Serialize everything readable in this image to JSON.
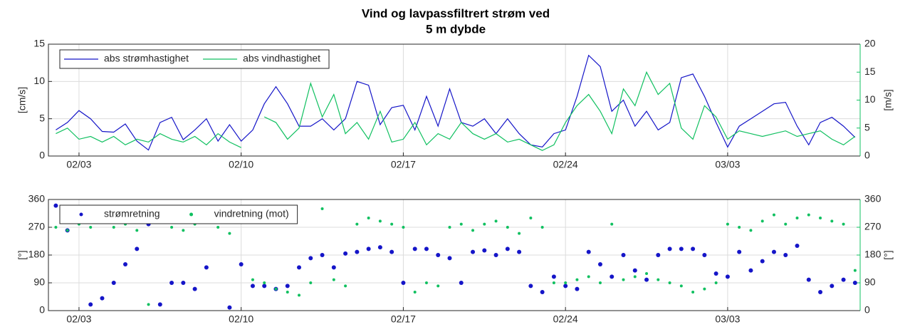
{
  "chart_data": [
    {
      "type": "line",
      "title": [
        "Vind og lavpassfiltrert strøm ved",
        "5 m dybde"
      ],
      "ylabel": "[cm/s]",
      "y2label": "[m/s]",
      "xlim": [
        32.68,
        67.72
      ],
      "xticks": [
        {
          "value": 34,
          "label": "02/03"
        },
        {
          "value": 41,
          "label": "02/10"
        },
        {
          "value": 48,
          "label": "02/17"
        },
        {
          "value": 55,
          "label": "02/24"
        },
        {
          "value": 62,
          "label": "03/03"
        }
      ],
      "ylim": [
        0,
        15
      ],
      "yticks": [
        0,
        5,
        10,
        15
      ],
      "y2lim": [
        0,
        20
      ],
      "y2ticks": [
        0,
        5,
        10,
        15,
        20
      ],
      "grid": true,
      "legend": "upper left",
      "x": [
        33,
        33.5,
        34,
        34.5,
        35,
        35.5,
        36,
        36.5,
        37,
        37.5,
        38,
        38.5,
        39,
        39.5,
        40,
        40.5,
        41,
        41.5,
        42,
        42.5,
        43,
        43.5,
        44,
        44.5,
        45,
        45.5,
        46,
        46.5,
        47,
        47.5,
        48,
        48.5,
        49,
        49.5,
        50,
        50.5,
        51,
        51.5,
        52,
        52.5,
        53,
        53.5,
        54,
        54.5,
        55,
        55.5,
        56,
        56.5,
        57,
        57.5,
        58,
        58.5,
        59,
        59.5,
        60,
        60.5,
        61,
        61.5,
        62,
        62.5,
        63,
        63.5,
        64,
        64.5,
        65,
        65.5,
        66,
        66.5,
        67,
        67.5
      ],
      "series": [
        {
          "name": "abs strømhastighet",
          "color": "#1515c8",
          "values": [
            3.5,
            4.5,
            6.1,
            5.0,
            3.3,
            3.2,
            4.3,
            2.0,
            0.8,
            4.5,
            5.2,
            2.2,
            3.5,
            5.0,
            2.0,
            4.2,
            2.0,
            3.5,
            7.0,
            9.3,
            7.0,
            4.0,
            4.0,
            5.0,
            3.5,
            5.0,
            10.0,
            9.5,
            4.2,
            6.5,
            6.8,
            3.5,
            8.0,
            4.0,
            9.0,
            4.5,
            4.0,
            5.0,
            3.0,
            5.0,
            3.0,
            1.5,
            1.2,
            3.0,
            3.5,
            8.0,
            13.5,
            12.0,
            6.0,
            7.5,
            4.0,
            6.0,
            3.5,
            4.5,
            10.5,
            11.0,
            8.0,
            4.5,
            1.2,
            4.0,
            5.0,
            6.0,
            7.0,
            7.2,
            4.0,
            1.5,
            4.5,
            5.2,
            4.0,
            2.5
          ]
        },
        {
          "name": "abs vindhastighet",
          "color": "#10c060",
          "axis": "y2",
          "values": [
            4,
            5,
            3,
            3.5,
            2.5,
            3.5,
            2,
            3,
            2.5,
            4,
            3,
            2.5,
            3.5,
            2,
            4,
            2.5,
            1.5,
            null,
            7,
            6,
            3,
            5,
            13,
            7,
            11,
            4,
            6,
            3,
            8,
            2.5,
            3,
            6,
            2,
            4,
            3,
            6,
            4,
            3,
            4,
            2.5,
            3,
            2,
            1,
            2,
            6,
            9,
            11,
            8,
            4,
            12,
            9,
            15,
            11,
            13,
            5,
            3,
            9,
            7,
            3,
            4.5,
            4,
            3.5,
            4,
            4.5,
            3.5,
            4,
            4.5,
            3,
            2,
            3.5
          ]
        }
      ]
    },
    {
      "type": "scatter",
      "ylabel": "[°]",
      "y2label": "[°]",
      "xlim": [
        32.68,
        67.72
      ],
      "xticks": [
        {
          "value": 34,
          "label": "02/03"
        },
        {
          "value": 41,
          "label": "02/10"
        },
        {
          "value": 48,
          "label": "02/17"
        },
        {
          "value": 55,
          "label": "02/24"
        },
        {
          "value": 62,
          "label": "03/03"
        }
      ],
      "ylim": [
        0,
        360
      ],
      "yticks": [
        0,
        90,
        180,
        270,
        360
      ],
      "y2lim": [
        0,
        360
      ],
      "y2ticks": [
        0,
        90,
        180,
        270,
        360
      ],
      "grid": true,
      "legend": "upper left",
      "x": [
        33,
        33.5,
        34,
        34.5,
        35,
        35.5,
        36,
        36.5,
        37,
        37.5,
        38,
        38.5,
        39,
        39.5,
        40,
        40.5,
        41,
        41.5,
        42,
        42.5,
        43,
        43.5,
        44,
        44.5,
        45,
        45.5,
        46,
        46.5,
        47,
        47.5,
        48,
        48.5,
        49,
        49.5,
        50,
        50.5,
        51,
        51.5,
        52,
        52.5,
        53,
        53.5,
        54,
        54.5,
        55,
        55.5,
        56,
        56.5,
        57,
        57.5,
        58,
        58.5,
        59,
        59.5,
        60,
        60.5,
        61,
        61.5,
        62,
        62.5,
        63,
        63.5,
        64,
        64.5,
        65,
        65.5,
        66,
        66.5,
        67,
        67.5
      ],
      "series": [
        {
          "name": "strømretning",
          "color": "#1515c8",
          "values": [
            340,
            260,
            300,
            20,
            40,
            90,
            150,
            200,
            280,
            20,
            90,
            90,
            70,
            140,
            300,
            10,
            150,
            80,
            80,
            70,
            80,
            140,
            170,
            180,
            140,
            185,
            190,
            200,
            205,
            190,
            90,
            200,
            200,
            180,
            170,
            90,
            190,
            195,
            180,
            200,
            190,
            80,
            60,
            110,
            80,
            70,
            190,
            150,
            110,
            180,
            130,
            100,
            180,
            200,
            200,
            200,
            180,
            120,
            110,
            190,
            130,
            160,
            190,
            180,
            210,
            100,
            60,
            80,
            100,
            90
          ]
        },
        {
          "name": "vindretning (mot)",
          "color": "#10c060",
          "axis": "y2",
          "values": [
            270,
            260,
            280,
            270,
            290,
            270,
            280,
            260,
            20,
            300,
            270,
            260,
            280,
            320,
            270,
            250,
            290,
            100,
            90,
            70,
            60,
            50,
            90,
            330,
            100,
            80,
            280,
            300,
            290,
            280,
            270,
            60,
            90,
            80,
            270,
            280,
            260,
            280,
            290,
            270,
            250,
            300,
            270,
            90,
            90,
            100,
            110,
            90,
            280,
            100,
            110,
            120,
            100,
            90,
            80,
            60,
            70,
            90,
            280,
            270,
            260,
            290,
            310,
            280,
            300,
            310,
            300,
            290,
            280,
            130
          ]
        }
      ]
    }
  ]
}
